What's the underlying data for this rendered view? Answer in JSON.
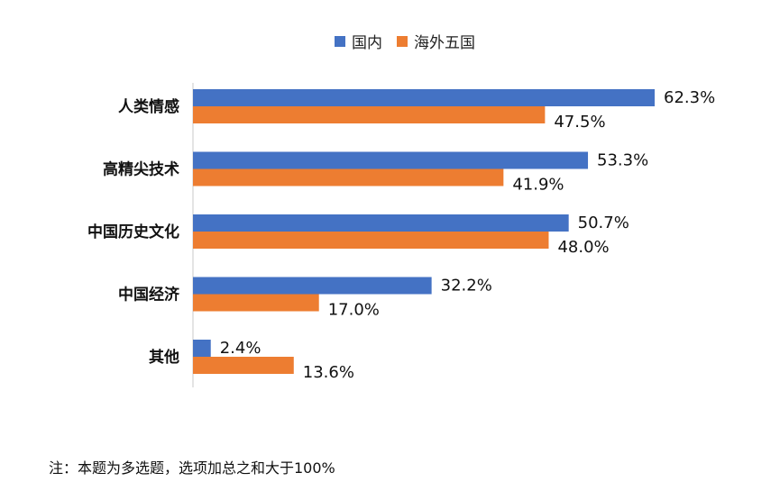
{
  "chart_data": {
    "type": "bar",
    "orientation": "horizontal",
    "categories": [
      "人类情感",
      "高精尖技术",
      "中国历史文化",
      "中国经济",
      "其他"
    ],
    "series": [
      {
        "name": "国内",
        "color": "#4472C4",
        "values": [
          62.3,
          53.3,
          50.7,
          32.2,
          2.4
        ],
        "labels": [
          "62.3%",
          "53.3%",
          "50.7%",
          "32.2%",
          "2.4%"
        ]
      },
      {
        "name": "海外五国",
        "color": "#ED7D31",
        "values": [
          47.5,
          41.9,
          48.0,
          17.0,
          13.6
        ],
        "labels": [
          "47.5%",
          "41.9%",
          "48.0%",
          "17.0%",
          "13.6%"
        ]
      }
    ],
    "xlim": [
      0,
      62.3
    ],
    "legend_position": "top"
  },
  "note": "注：本题为多选题，选项加总之和大于100%"
}
